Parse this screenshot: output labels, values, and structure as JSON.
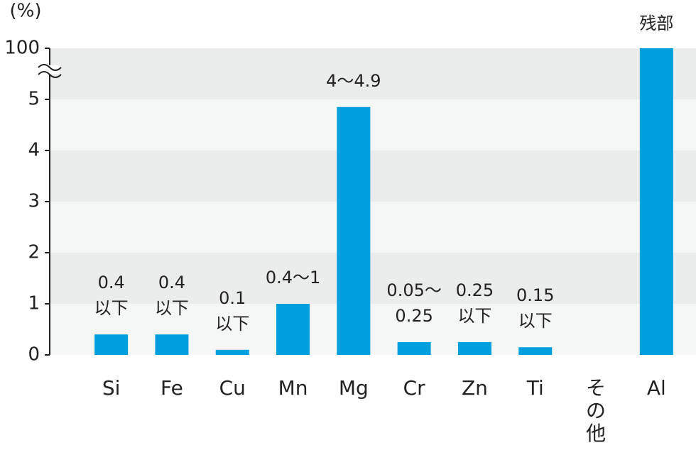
{
  "chart_data": {
    "type": "bar",
    "y_label": "(%)",
    "categories": [
      "Si",
      "Fe",
      "Cu",
      "Mn",
      "Mg",
      "Cr",
      "Zn",
      "Ti",
      "その他",
      "Al"
    ],
    "values": [
      0.4,
      0.4,
      0.1,
      1,
      4.85,
      0.25,
      0.25,
      0.15,
      null,
      100
    ],
    "value_labels": [
      "0.4\n以下",
      "0.4\n以下",
      "0.1\n以下",
      "0.4〜1",
      "4〜4.9",
      "0.05〜\n0.25",
      "0.25\n以下",
      "0.15\n以下",
      null,
      "残部"
    ],
    "color": "#00a0df",
    "ylim": [
      0,
      100
    ],
    "yticks": [
      0,
      1,
      2,
      3,
      4,
      5,
      100
    ],
    "axis_break": 6,
    "band_colors": [
      "#ebecec",
      "#f5f6f6"
    ]
  }
}
